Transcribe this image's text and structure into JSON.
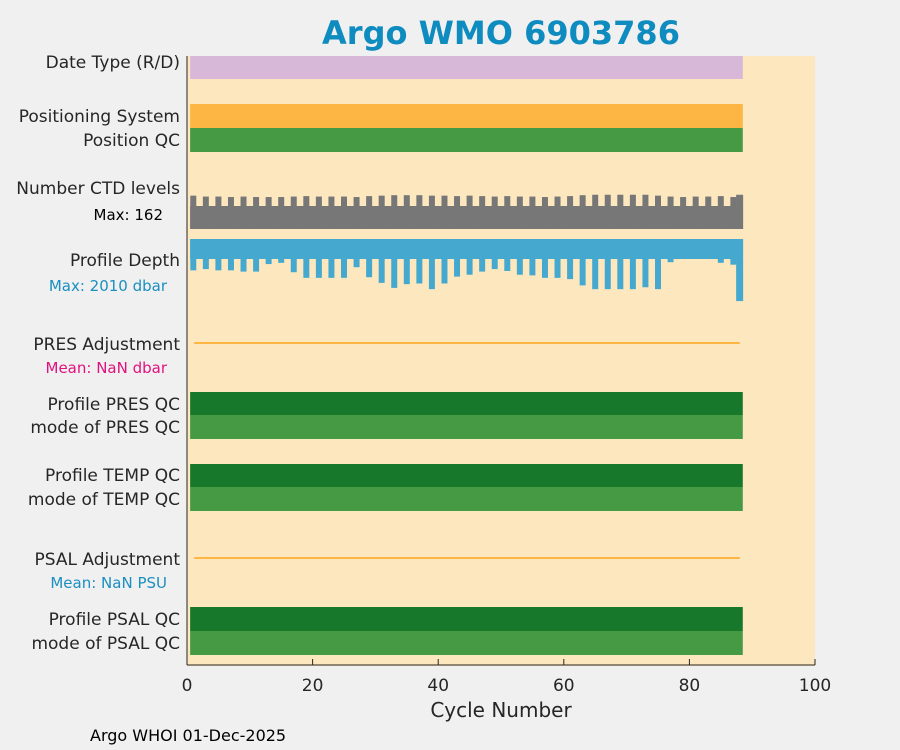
{
  "chart_data": {
    "type": "bar",
    "title": "Argo WMO 6903786",
    "xlabel": "Cycle Number",
    "xlim": [
      0,
      100
    ],
    "xticks": [
      "0",
      "20",
      "40",
      "60",
      "80",
      "100"
    ],
    "last_cycle": 88.5,
    "footer": "Argo WHOI 01-Dec-2025",
    "colors": {
      "title": "#0e8bbf",
      "background": "#fde7bf",
      "date_type": "#d8b8d8",
      "positioning": "#fdb643",
      "qc_dark": "#17782c",
      "qc_light": "#469a44",
      "ctd": "#777777",
      "depth": "#45a9cf",
      "adjustment": "#fdb643",
      "mean_pres": "#e0127f",
      "mean_psal": "#1a8fc0",
      "axis": "#262626"
    },
    "rows": {
      "date_type": "Date Type (R/D)",
      "positioning": "Positioning System",
      "position_qc": "Position QC",
      "ctd_levels": "Number CTD levels",
      "ctd_max": "Max: 162",
      "profile_depth": "Profile Depth",
      "depth_max": "Max: 2010 dbar",
      "pres_adjustment": "PRES Adjustment",
      "pres_mean": "Mean:  NaN dbar",
      "profile_pres_qc": "Profile PRES QC",
      "mode_pres_qc": "mode of PRES QC",
      "profile_temp_qc": "Profile TEMP QC",
      "mode_temp_qc": "mode of TEMP QC",
      "psal_adjustment": "PSAL Adjustment",
      "psal_mean": "Mean:  NaN PSU",
      "profile_psal_qc": "Profile PSAL QC",
      "mode_psal_qc": "mode of PSAL QC"
    },
    "ctd_levels": {
      "cycles": [
        1,
        3,
        5,
        7,
        9,
        11,
        13,
        15,
        17,
        19,
        21,
        23,
        25,
        27,
        29,
        31,
        33,
        35,
        37,
        39,
        41,
        43,
        45,
        47,
        49,
        51,
        53,
        55,
        57,
        59,
        61,
        63,
        65,
        67,
        69,
        71,
        73,
        75,
        77,
        79,
        81,
        83,
        85,
        87,
        88
      ],
      "values": [
        146,
        142,
        142,
        140,
        142,
        140,
        140,
        140,
        142,
        144,
        142,
        142,
        142,
        140,
        144,
        146,
        148,
        148,
        148,
        146,
        146,
        144,
        146,
        144,
        142,
        144,
        142,
        142,
        140,
        142,
        144,
        148,
        150,
        150,
        150,
        150,
        150,
        146,
        142,
        140,
        142,
        142,
        144,
        140,
        150
      ],
      "max": 162
    },
    "profile_depth": {
      "cycles": [
        1,
        3,
        5,
        7,
        9,
        11,
        13,
        15,
        17,
        19,
        21,
        23,
        25,
        27,
        29,
        31,
        33,
        35,
        37,
        39,
        41,
        43,
        45,
        47,
        49,
        51,
        53,
        55,
        57,
        59,
        61,
        63,
        65,
        67,
        69,
        71,
        73,
        75,
        77,
        79,
        81,
        83,
        85,
        87,
        88
      ],
      "values": [
        1000,
        960,
        1000,
        1000,
        1040,
        1040,
        800,
        760,
        1060,
        1240,
        1240,
        1240,
        1240,
        900,
        1220,
        1400,
        1560,
        1440,
        1420,
        1600,
        1420,
        1200,
        1140,
        1040,
        960,
        1020,
        1140,
        1160,
        1240,
        1240,
        1280,
        1480,
        1600,
        1600,
        1600,
        1600,
        1540,
        1600,
        740,
        560,
        380,
        560,
        760,
        820,
        1980
      ],
      "max": 2010
    }
  }
}
